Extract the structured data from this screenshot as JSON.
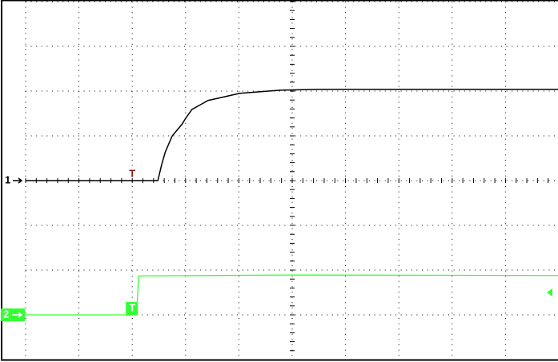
{
  "chart_data": {
    "type": "line",
    "xlim": [
      0,
      10
    ],
    "ylim": [
      0,
      8
    ],
    "xticks": [
      0,
      1,
      2,
      3,
      4,
      5,
      6,
      7,
      8,
      9,
      10
    ],
    "yticks": [
      0,
      1,
      2,
      3,
      4,
      5,
      6,
      7,
      8
    ],
    "grid": true,
    "series": [
      {
        "name": "1",
        "color": "#000000",
        "x": [
          0,
          2.48,
          2.55,
          2.62,
          2.75,
          2.94,
          3.0,
          3.12,
          3.42,
          4.02,
          4.77,
          5.5,
          10
        ],
        "values": [
          4.0,
          4.0,
          4.35,
          4.64,
          5.0,
          5.27,
          5.39,
          5.59,
          5.79,
          5.95,
          6.02,
          6.04,
          6.04
        ]
      },
      {
        "name": "2",
        "color": "#33ff33",
        "x": [
          0,
          2.08,
          2.12,
          5,
          10
        ],
        "values": [
          1.0,
          1.0,
          1.87,
          1.89,
          1.88
        ]
      }
    ],
    "trigger": {
      "x": 2,
      "label": "T"
    }
  }
}
